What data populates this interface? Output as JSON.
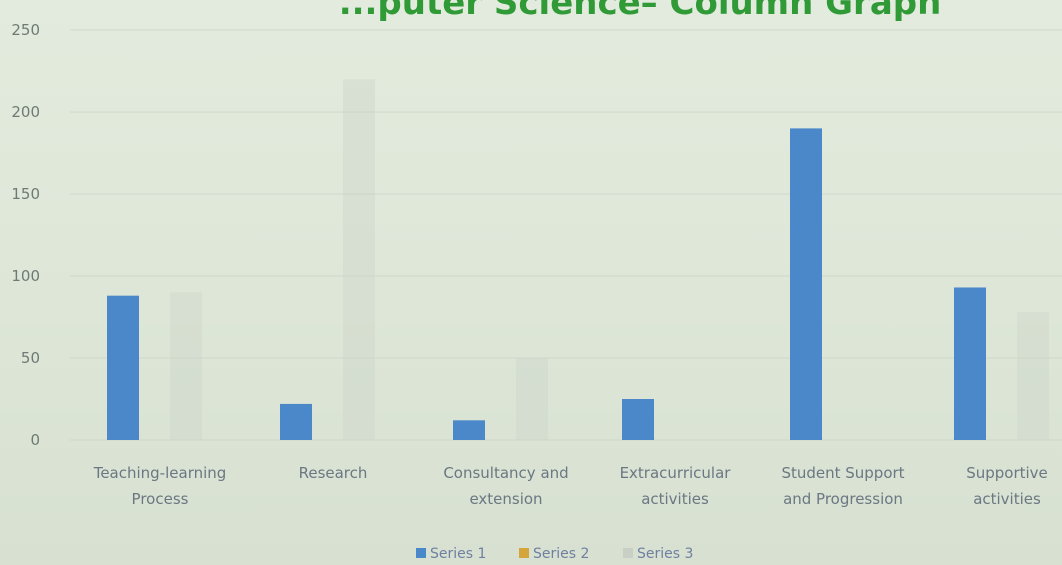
{
  "chart_data": {
    "type": "bar",
    "title": "...puter Science– Column Graph",
    "xlabel": "",
    "ylabel": "",
    "ylim": [
      0,
      250
    ],
    "yticks": [
      0,
      50,
      100,
      150,
      200,
      250
    ],
    "grid": true,
    "legend_position": "bottom",
    "categories": [
      [
        "Teaching-learning",
        "Process"
      ],
      [
        "Research"
      ],
      [
        "Consultancy and",
        "extension"
      ],
      [
        "Extracurricular",
        "activities"
      ],
      [
        "Student Support",
        "and Progression"
      ],
      [
        "Supportive",
        "activities"
      ]
    ],
    "series": [
      {
        "name": "Series 1",
        "color": "#4a88c9",
        "values": [
          88,
          22,
          12,
          25,
          190,
          93
        ]
      },
      {
        "name": "Series 2",
        "color": "#d4a53a",
        "values": [
          0,
          0,
          0,
          0,
          0,
          0
        ]
      },
      {
        "name": "Series 3",
        "color": "#c8d0c6",
        "values": [
          90,
          220,
          50,
          0,
          0,
          78
        ]
      }
    ]
  }
}
